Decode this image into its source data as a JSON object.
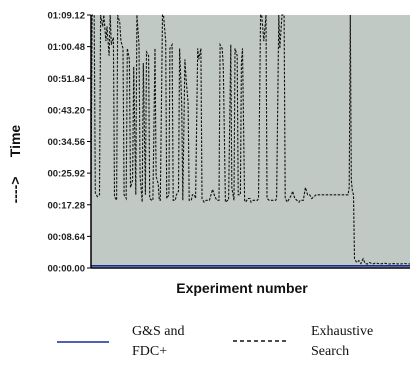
{
  "chart_data": {
    "type": "line",
    "xlabel": "Experiment number",
    "ylabel": "Time",
    "ylabel_arrow": "---->",
    "y_ticks": [
      "00:00.00",
      "00:08.64",
      "00:17.28",
      "00:25.92",
      "00:34.56",
      "00:43.20",
      "00:51.84",
      "01:00.48",
      "01:09.12"
    ],
    "y_tick_seconds": [
      0,
      8.64,
      17.28,
      25.92,
      34.56,
      43.2,
      51.84,
      60.48,
      69.12
    ],
    "ylim_seconds": [
      0,
      69.12
    ],
    "x_range": [
      1,
      300
    ],
    "background_color": "#c0c9c4",
    "grid": false,
    "legend_position": "bottom",
    "series": [
      {
        "name": "G&S and FDC+",
        "name_lines": [
          "G&S and",
          "FDC+"
        ],
        "color": "#1a2a9c",
        "style": "solid",
        "points": [
          [
            1,
            0.6
          ],
          [
            300,
            0.6
          ]
        ]
      },
      {
        "name": "Exhaustive Search",
        "name_lines": [
          "Exhaustive",
          "Search"
        ],
        "color": "#111111",
        "style": "dashed",
        "points": [
          [
            1,
            19.5
          ],
          [
            2,
            69.12
          ],
          [
            4,
            69.12
          ],
          [
            5,
            20.5
          ],
          [
            7,
            19.5
          ],
          [
            9,
            20
          ],
          [
            10,
            69.12
          ],
          [
            12,
            66
          ],
          [
            13,
            69.12
          ],
          [
            15,
            62
          ],
          [
            16,
            66
          ],
          [
            18,
            58
          ],
          [
            19,
            69.12
          ],
          [
            20,
            61
          ],
          [
            22,
            63
          ],
          [
            23,
            19.5
          ],
          [
            25,
            18.5
          ],
          [
            26,
            69.12
          ],
          [
            28,
            67
          ],
          [
            29,
            62
          ],
          [
            31,
            60
          ],
          [
            32,
            20
          ],
          [
            34,
            19
          ],
          [
            35,
            60
          ],
          [
            37,
            57
          ],
          [
            38,
            22
          ],
          [
            40,
            24
          ],
          [
            41,
            55
          ],
          [
            43,
            20
          ],
          [
            44,
            69.12
          ],
          [
            46,
            61
          ],
          [
            47,
            25
          ],
          [
            49,
            18
          ],
          [
            50,
            56
          ],
          [
            52,
            20
          ],
          [
            53,
            59
          ],
          [
            55,
            58
          ],
          [
            56,
            19
          ],
          [
            58,
            18.5
          ],
          [
            59,
            18.5
          ],
          [
            61,
            60
          ],
          [
            62,
            25
          ],
          [
            64,
            23
          ],
          [
            65,
            18.5
          ],
          [
            66,
            18.5
          ],
          [
            68,
            69.12
          ],
          [
            69,
            69.12
          ],
          [
            71,
            62
          ],
          [
            72,
            19
          ],
          [
            74,
            20
          ],
          [
            75,
            60
          ],
          [
            77,
            61
          ],
          [
            78,
            18.5
          ],
          [
            80,
            18.5
          ],
          [
            81,
            20
          ],
          [
            83,
            21
          ],
          [
            84,
            60
          ],
          [
            86,
            45
          ],
          [
            87,
            18.5
          ],
          [
            89,
            57
          ],
          [
            90,
            52
          ],
          [
            92,
            45
          ],
          [
            93,
            18.5
          ],
          [
            95,
            18.5
          ],
          [
            96,
            20
          ],
          [
            98,
            20
          ],
          [
            99,
            19
          ],
          [
            101,
            60
          ],
          [
            102,
            57
          ],
          [
            104,
            60
          ],
          [
            105,
            19
          ],
          [
            107,
            18
          ],
          [
            109,
            18.5
          ],
          [
            110,
            18.5
          ],
          [
            112,
            18.5
          ],
          [
            113,
            19.5
          ],
          [
            115,
            21.5
          ],
          [
            117,
            19.5
          ],
          [
            119,
            18.5
          ],
          [
            120,
            18.5
          ],
          [
            121,
            18.5
          ],
          [
            122,
            61
          ],
          [
            124,
            60
          ],
          [
            125,
            55
          ],
          [
            127,
            18
          ],
          [
            129,
            18.5
          ],
          [
            130,
            18.5
          ],
          [
            132,
            61
          ],
          [
            133,
            22
          ],
          [
            135,
            18.5
          ],
          [
            136,
            60
          ],
          [
            138,
            58
          ],
          [
            139,
            20
          ],
          [
            141,
            20
          ],
          [
            142,
            56
          ],
          [
            143,
            60
          ],
          [
            145,
            18.5
          ],
          [
            146,
            18
          ],
          [
            148,
            19
          ],
          [
            150,
            19
          ],
          [
            151,
            18
          ],
          [
            153,
            18.5
          ],
          [
            155,
            18.5
          ],
          [
            157,
            18.5
          ],
          [
            158,
            19
          ],
          [
            160,
            69.12
          ],
          [
            161,
            69.12
          ],
          [
            163,
            62
          ],
          [
            165,
            69.12
          ],
          [
            166,
            19
          ],
          [
            168,
            18.5
          ],
          [
            170,
            18.5
          ],
          [
            172,
            18.5
          ],
          [
            174,
            18.5
          ],
          [
            175,
            19
          ],
          [
            177,
            69.12
          ],
          [
            178,
            60
          ],
          [
            180,
            69.12
          ],
          [
            182,
            69.12
          ],
          [
            183,
            19
          ],
          [
            185,
            18
          ],
          [
            187,
            19
          ],
          [
            189,
            20
          ],
          [
            190,
            21
          ],
          [
            192,
            19
          ],
          [
            194,
            18.5
          ],
          [
            196,
            18
          ],
          [
            197,
            18.5
          ],
          [
            198,
            18.5
          ],
          [
            200,
            18.5
          ],
          [
            202,
            22
          ],
          [
            204,
            20
          ],
          [
            206,
            20
          ],
          [
            208,
            19
          ],
          [
            210,
            19.5
          ],
          [
            212,
            20
          ],
          [
            214,
            20
          ],
          [
            216,
            20
          ],
          [
            218,
            20
          ],
          [
            220,
            20
          ],
          [
            222,
            20
          ],
          [
            224,
            20
          ],
          [
            226,
            20
          ],
          [
            228,
            20
          ],
          [
            230,
            20
          ],
          [
            232,
            20
          ],
          [
            234,
            20
          ],
          [
            236,
            20
          ],
          [
            238,
            20
          ],
          [
            240,
            20
          ],
          [
            242,
            20
          ],
          [
            243,
            22
          ],
          [
            244,
            69.12
          ],
          [
            245,
            24
          ],
          [
            246,
            21
          ],
          [
            247,
            20
          ],
          [
            248,
            2.5
          ],
          [
            250,
            1.5
          ],
          [
            252,
            2
          ],
          [
            254,
            1.2
          ],
          [
            256,
            2.5
          ],
          [
            258,
            1.2
          ],
          [
            260,
            1.1
          ],
          [
            262,
            1.5
          ],
          [
            265,
            1.1
          ],
          [
            268,
            1.4
          ],
          [
            272,
            1.1
          ],
          [
            276,
            1.3
          ],
          [
            280,
            1.1
          ],
          [
            285,
            1.2
          ],
          [
            290,
            1.1
          ],
          [
            295,
            1.2
          ],
          [
            300,
            1.1
          ]
        ]
      }
    ]
  }
}
